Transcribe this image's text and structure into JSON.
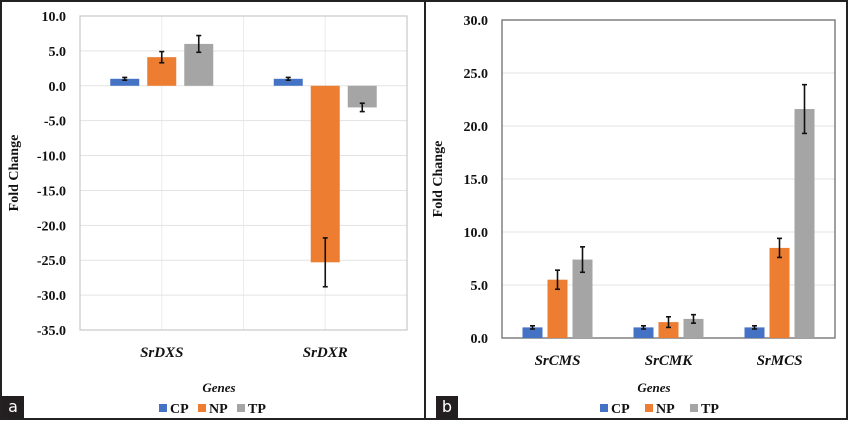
{
  "panels": [
    {
      "label": "a"
    },
    {
      "label": "b"
    }
  ],
  "chart_data": [
    {
      "type": "bar",
      "title": "",
      "xlabel": "Genes",
      "ylabel": "Fold Change",
      "ylim": [
        -35,
        10
      ],
      "yticks": [
        "10.0",
        "5.0",
        "0.0",
        "-5.0",
        "-10.0",
        "-15.0",
        "-20.0",
        "-25.0",
        "-30.0",
        "-35.0"
      ],
      "ytick_values": [
        10,
        5,
        0,
        -5,
        -10,
        -15,
        -20,
        -25,
        -30,
        -35
      ],
      "categories": [
        "SrDXS",
        "SrDXR"
      ],
      "grid": true,
      "legend_position": "bottom",
      "series": [
        {
          "name": "CP",
          "color": "#4472c4",
          "values": [
            1.0,
            1.0
          ],
          "errors": [
            0.2,
            0.2
          ]
        },
        {
          "name": "NP",
          "color": "#ed7d31",
          "values": [
            4.1,
            -25.3
          ],
          "errors": [
            0.8,
            3.5
          ]
        },
        {
          "name": "TP",
          "color": "#a5a5a5",
          "values": [
            6.0,
            -3.1
          ],
          "errors": [
            1.2,
            0.6
          ]
        }
      ]
    },
    {
      "type": "bar",
      "title": "",
      "xlabel": "Genes",
      "ylabel": "Fold Change",
      "ylim": [
        0,
        30
      ],
      "yticks": [
        "30.0",
        "25.0",
        "20.0",
        "15.0",
        "10.0",
        "5.0",
        "0.0"
      ],
      "ytick_values": [
        30,
        25,
        20,
        15,
        10,
        5,
        0
      ],
      "categories": [
        "SrCMS",
        "SrCMK",
        "SrMCS"
      ],
      "grid": true,
      "legend_position": "bottom",
      "series": [
        {
          "name": "CP",
          "color": "#4472c4",
          "values": [
            1.0,
            1.0,
            1.0
          ],
          "errors": [
            0.15,
            0.15,
            0.15
          ]
        },
        {
          "name": "NP",
          "color": "#ed7d31",
          "values": [
            5.5,
            1.5,
            8.5
          ],
          "errors": [
            0.9,
            0.5,
            0.9
          ]
        },
        {
          "name": "TP",
          "color": "#a5a5a5",
          "values": [
            7.4,
            1.8,
            21.6
          ],
          "errors": [
            1.2,
            0.4,
            2.3
          ]
        }
      ]
    }
  ]
}
